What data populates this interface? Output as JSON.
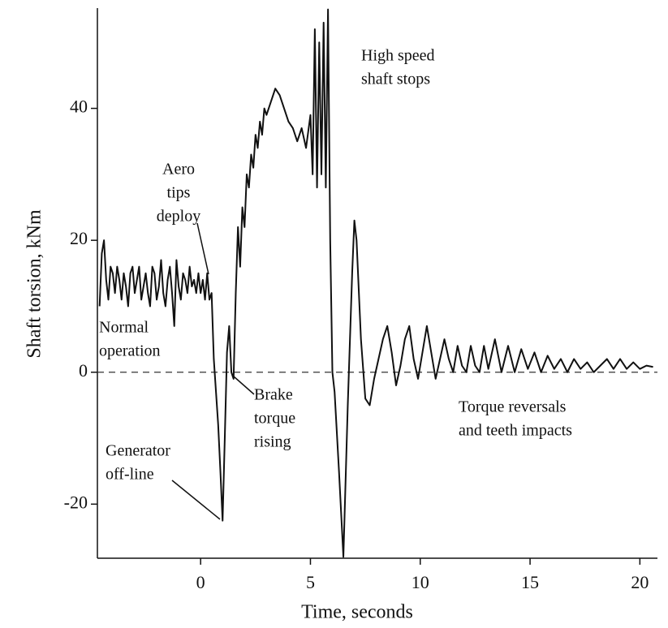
{
  "chart_data": {
    "type": "line",
    "xlabel": "Time, seconds",
    "ylabel": "Shaft torsion, kNm",
    "xlim": [
      -4.7,
      20.8
    ],
    "ylim": [
      -28.2,
      55.2
    ],
    "xticks": [
      0,
      5,
      10,
      15,
      20
    ],
    "yticks": [
      -20,
      0,
      20,
      40
    ],
    "hline": 0,
    "series": [
      {
        "color": "#111111",
        "x": [
          -4.6,
          -4.5,
          -4.4,
          -4.3,
          -4.2,
          -4.1,
          -4.0,
          -3.9,
          -3.8,
          -3.7,
          -3.6,
          -3.5,
          -3.4,
          -3.3,
          -3.2,
          -3.1,
          -3.0,
          -2.9,
          -2.8,
          -2.7,
          -2.6,
          -2.5,
          -2.4,
          -2.3,
          -2.2,
          -2.1,
          -2.0,
          -1.9,
          -1.8,
          -1.7,
          -1.6,
          -1.5,
          -1.4,
          -1.3,
          -1.2,
          -1.1,
          -1.0,
          -0.9,
          -0.8,
          -0.7,
          -0.6,
          -0.5,
          -0.4,
          -0.3,
          -0.2,
          -0.1,
          0.0,
          0.1,
          0.2,
          0.3,
          0.4,
          0.5,
          0.6,
          0.7,
          0.8,
          0.9,
          1.0,
          1.1,
          1.2,
          1.3,
          1.4,
          1.5,
          1.6,
          1.7,
          1.8,
          1.9,
          2.0,
          2.1,
          2.2,
          2.3,
          2.4,
          2.5,
          2.6,
          2.7,
          2.8,
          2.9,
          3.0,
          3.2,
          3.4,
          3.6,
          3.8,
          4.0,
          4.2,
          4.4,
          4.6,
          4.8,
          5.0,
          5.1,
          5.2,
          5.3,
          5.4,
          5.5,
          5.6,
          5.7,
          5.8,
          5.9,
          6.0,
          6.1,
          6.3,
          6.5,
          6.7,
          6.8,
          6.9,
          7.0,
          7.1,
          7.3,
          7.5,
          7.7,
          7.9,
          8.1,
          8.3,
          8.5,
          8.7,
          8.9,
          9.1,
          9.3,
          9.5,
          9.7,
          9.9,
          10.1,
          10.3,
          10.5,
          10.7,
          10.9,
          11.1,
          11.3,
          11.5,
          11.7,
          11.9,
          12.1,
          12.3,
          12.5,
          12.7,
          12.9,
          13.1,
          13.4,
          13.7,
          14.0,
          14.3,
          14.6,
          14.9,
          15.2,
          15.5,
          15.8,
          16.1,
          16.4,
          16.7,
          17.0,
          17.3,
          17.6,
          17.9,
          18.2,
          18.5,
          18.8,
          19.1,
          19.4,
          19.7,
          20.0,
          20.3,
          20.6
        ],
        "values": [
          10,
          18,
          20,
          14,
          11,
          16,
          15,
          12,
          16,
          14,
          11,
          15,
          13,
          10,
          15,
          16,
          12,
          14,
          16,
          11,
          13,
          15,
          12,
          10,
          16,
          15,
          11,
          13,
          17,
          12,
          10,
          14,
          16,
          12,
          7,
          17,
          13,
          11,
          15,
          14,
          12,
          16,
          13,
          14,
          12,
          15,
          12,
          14,
          11,
          15,
          11,
          12,
          2,
          -3,
          -8,
          -15,
          -22.5,
          -10,
          3,
          7,
          0,
          -1,
          12,
          22,
          16,
          25,
          22,
          30,
          28,
          33,
          31,
          36,
          34,
          38,
          36,
          40,
          39,
          41,
          43,
          42,
          40,
          38,
          37,
          35,
          37,
          34,
          39,
          30,
          52,
          28,
          50,
          30,
          53,
          28,
          55,
          20,
          0,
          -3,
          -15,
          -28,
          -5,
          5,
          15,
          23,
          20,
          5,
          -4,
          -5,
          -1,
          2,
          5,
          7,
          3,
          -2,
          1,
          5,
          7,
          2,
          -1,
          3,
          7,
          3,
          -1,
          2,
          5,
          2,
          0,
          4,
          1,
          0,
          4,
          1,
          0,
          4,
          0.5,
          5,
          0,
          4,
          0,
          3.5,
          0.5,
          3,
          0,
          2.5,
          0.5,
          2,
          0,
          2,
          0.5,
          1.5,
          0,
          1,
          2,
          0.5,
          2,
          0.5,
          1.5,
          0.5,
          1,
          0.8
        ]
      }
    ],
    "annotations": [
      {
        "lines": [
          "High speed",
          "shaft stops"
        ]
      },
      {
        "lines": [
          "Aero",
          "tips",
          "deploy"
        ]
      },
      {
        "lines": [
          "Normal",
          "operation"
        ]
      },
      {
        "lines": [
          "Generator",
          "off-line"
        ]
      },
      {
        "lines": [
          "Brake",
          "torque",
          "rising"
        ]
      },
      {
        "lines": [
          "Torque reversals",
          "and teeth impacts"
        ]
      }
    ]
  }
}
